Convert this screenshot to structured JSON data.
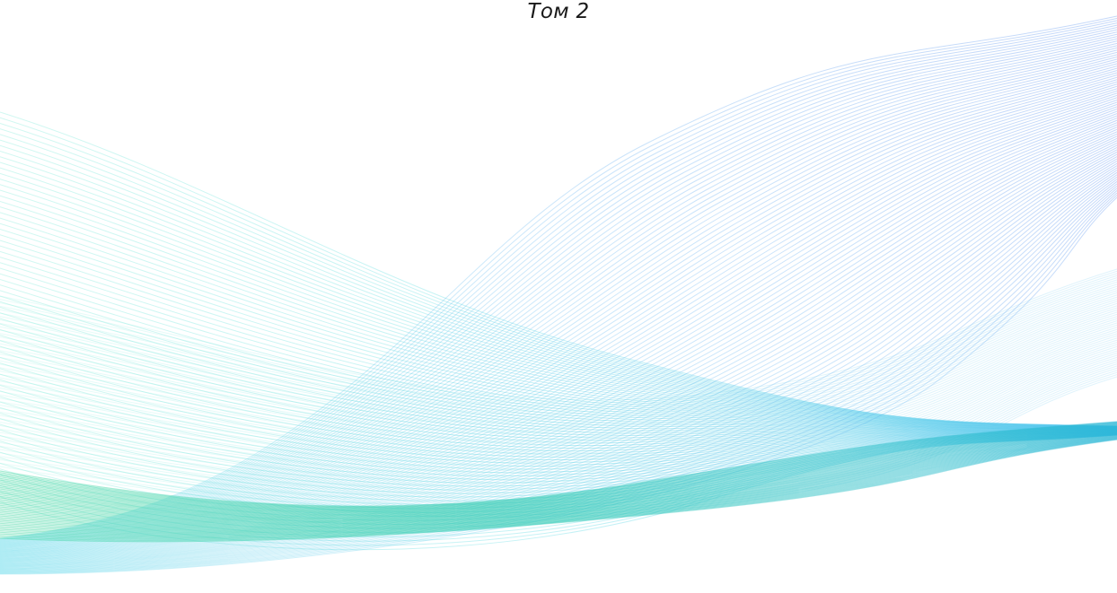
{
  "cover": {
    "volume_label": "Том 2"
  },
  "artwork": {
    "name": "flowing-wave-lines",
    "colors": {
      "teal": "#5ee6cf",
      "cyan": "#39c6e6",
      "blue": "#3f86ee",
      "green": "#3ecf9a"
    }
  }
}
